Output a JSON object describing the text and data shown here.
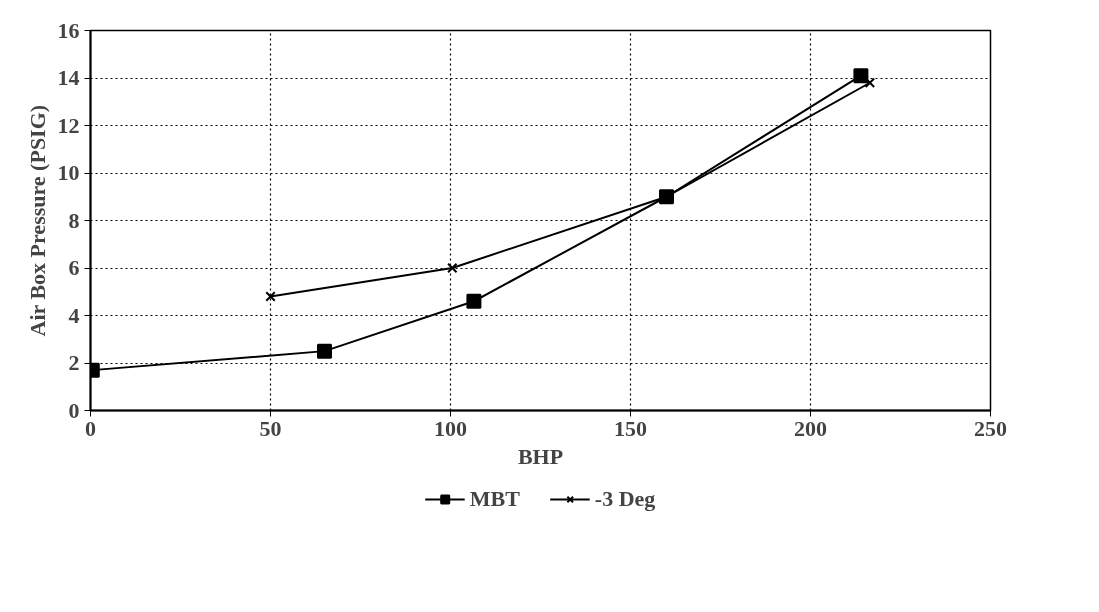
{
  "chart_data": {
    "type": "line",
    "xlabel": "BHP",
    "ylabel": "Air Box Pressure (PSIG)",
    "series": [
      {
        "name": "MBT",
        "color": "#000000",
        "marker": "square",
        "x": [
          0.5,
          65,
          106.5,
          160,
          214
        ],
        "values": [
          1.7,
          2.5,
          4.6,
          9.0,
          14.1
        ]
      },
      {
        "name": "-3 Deg",
        "color": "#000000",
        "marker": "cross",
        "x": [
          50,
          100.5,
          160,
          216.5
        ],
        "values": [
          4.8,
          6.0,
          9.0,
          13.8
        ]
      }
    ],
    "xlim": [
      0,
      250
    ],
    "xticks": [
      0,
      50,
      100,
      150,
      200,
      250
    ],
    "ylim": [
      0,
      16
    ],
    "yticks": [
      0,
      2,
      4,
      6,
      8,
      10,
      12,
      14,
      16
    ],
    "grid": true,
    "legend": "bottom",
    "line_style": "solid"
  }
}
